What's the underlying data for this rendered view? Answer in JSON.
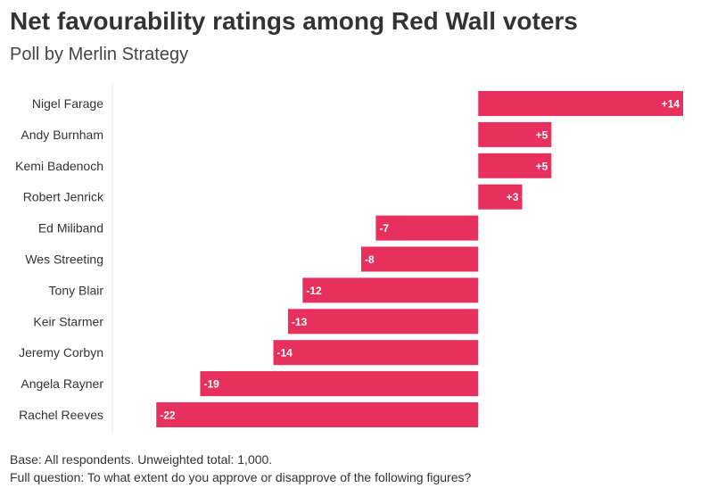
{
  "chart_data": {
    "type": "bar",
    "orientation": "horizontal",
    "title": "Net favourability ratings among Red Wall voters",
    "subtitle": "Poll by Merlin Strategy",
    "categories": [
      "Nigel Farage",
      "Andy Burnham",
      "Kemi Badenoch",
      "Robert Jenrick",
      "Ed Miliband",
      "Wes Streeting",
      "Tony Blair",
      "Keir Starmer",
      "Jeremy Corbyn",
      "Angela Rayner",
      "Rachel Reeves"
    ],
    "values": [
      14,
      5,
      5,
      3,
      -7,
      -8,
      -12,
      -13,
      -14,
      -19,
      -22
    ],
    "data_labels": [
      "+14",
      "+5",
      "+5",
      "+3",
      "-7",
      "-8",
      "-12",
      "-13",
      "-14",
      "-19",
      "-22"
    ],
    "xlim": [
      -25,
      14
    ],
    "xlabel": "",
    "ylabel": "",
    "grid": false,
    "bar_color": "#e8305f",
    "footer": [
      "Base: All respondents. Unweighted total: 1,000.",
      "Full question: To what extent do you approve or disapprove of the following figures?"
    ]
  }
}
